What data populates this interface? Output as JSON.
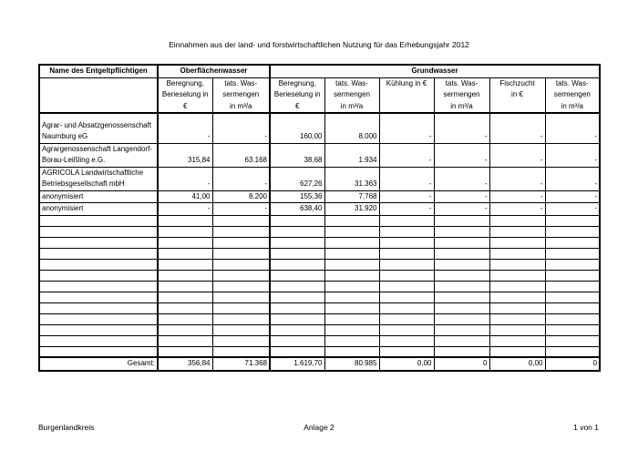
{
  "title": "Einnahmen aus der land- und forstwirtschaftlichen Nutzung für das Erhebungsjahr 2012",
  "table": {
    "header": {
      "name": "Name des Entgeltpflichtigen",
      "groups": [
        "Oberflächenwasser",
        "Grundwasser"
      ],
      "columns": [
        "Beregnung,\nBerieselung in\n€",
        "tats. Was-\nsermengen\nin m³/a",
        "Beregnung,\nBerieselung in\n€",
        "tats. Was-\nsermengen\nin m³/a",
        "Kühlung in €",
        "tats. Was-\nsermengen\nin m³/a",
        "Fischzucht\nin €",
        "tats. Was-\nsermengen\nin m³/a"
      ]
    },
    "rows": [
      [
        "Agrar- und Absatzgenossenschaft\nNaumburg eG",
        "-",
        "-",
        "160,00",
        "8.000",
        "-",
        "-",
        "-",
        "-"
      ],
      [
        "Agrargenossenschaft Langendorf-\nBorau-Leißling e.G.",
        "315,84",
        "63.168",
        "38,68",
        "1.934",
        "-",
        "-",
        "-",
        "-"
      ],
      [
        "AGRICOLA Landwirtschaftliche\nBetriebsgesellschaft mbH",
        "-",
        "-",
        "627,26",
        "31.363",
        "-",
        "-",
        "-",
        "-"
      ],
      [
        "anonymisiert",
        "41,00",
        "8.200",
        "155,36",
        "7.768",
        "-",
        "-",
        "-",
        "-"
      ],
      [
        "anonymisiert",
        "-",
        "-",
        "638,40",
        "31.920",
        "-",
        "-",
        "-",
        "-"
      ]
    ],
    "total": {
      "label": "Gesamt:",
      "values": [
        "356,84",
        "71.368",
        "1.619,70",
        "80.985",
        "0,00",
        "0",
        "0,00",
        "0"
      ]
    }
  },
  "footer": {
    "left": "Burgenlandkreis",
    "center": "Anlage 2",
    "right": "1 von 1"
  }
}
